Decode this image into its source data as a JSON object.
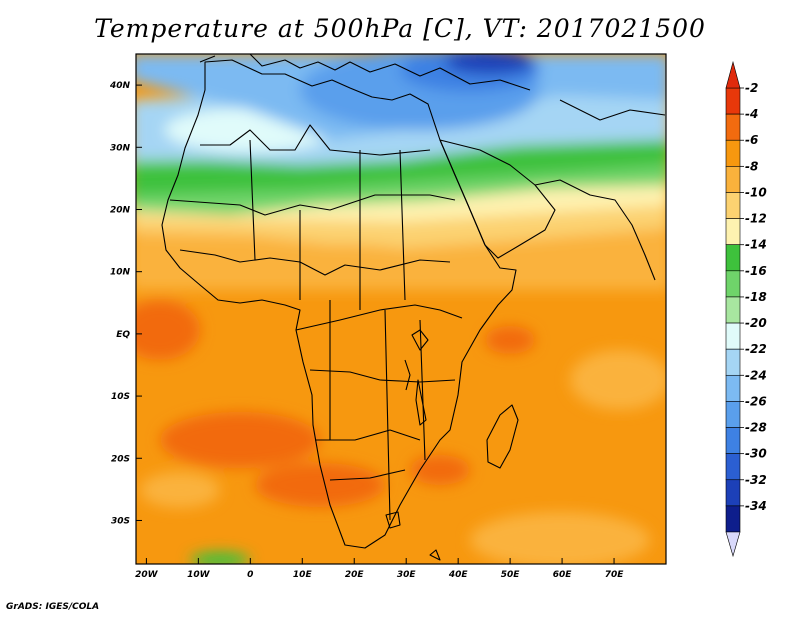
{
  "title": "Temperature at 500hPa [C], VT: 2017021500",
  "credit": "GrADS: IGES/COLA",
  "map": {
    "lat_labels": [
      "40N",
      "30N",
      "20N",
      "10N",
      "EQ",
      "10S",
      "20S",
      "30S"
    ],
    "lon_labels": [
      "20W",
      "10W",
      "0",
      "10E",
      "20E",
      "30E",
      "40E",
      "50E",
      "60E",
      "70E"
    ],
    "lon_range": [
      -22,
      80
    ],
    "lat_range": [
      -37,
      45
    ],
    "variable_units": "C"
  },
  "colorbar": {
    "labels": [
      "-2",
      "-4",
      "-6",
      "-8",
      "-10",
      "-12",
      "-14",
      "-16",
      "-18",
      "-20",
      "-22",
      "-24",
      "-26",
      "-28",
      "-30",
      "-32",
      "-34"
    ],
    "colors": [
      "#e8380a",
      "#f26b0f",
      "#f7980f",
      "#fab23c",
      "#fcd271",
      "#fef2b0",
      "#3ec13c",
      "#6fd46a",
      "#a8e6a0",
      "#e0fbfa",
      "#a5d5f4",
      "#7cbaf2",
      "#5a9fec",
      "#3e81e3",
      "#2b5fd2",
      "#1c40b8",
      "#0e1e8c"
    ],
    "above_color": "#e02a0c",
    "below_color": "#d9d9fb"
  }
}
